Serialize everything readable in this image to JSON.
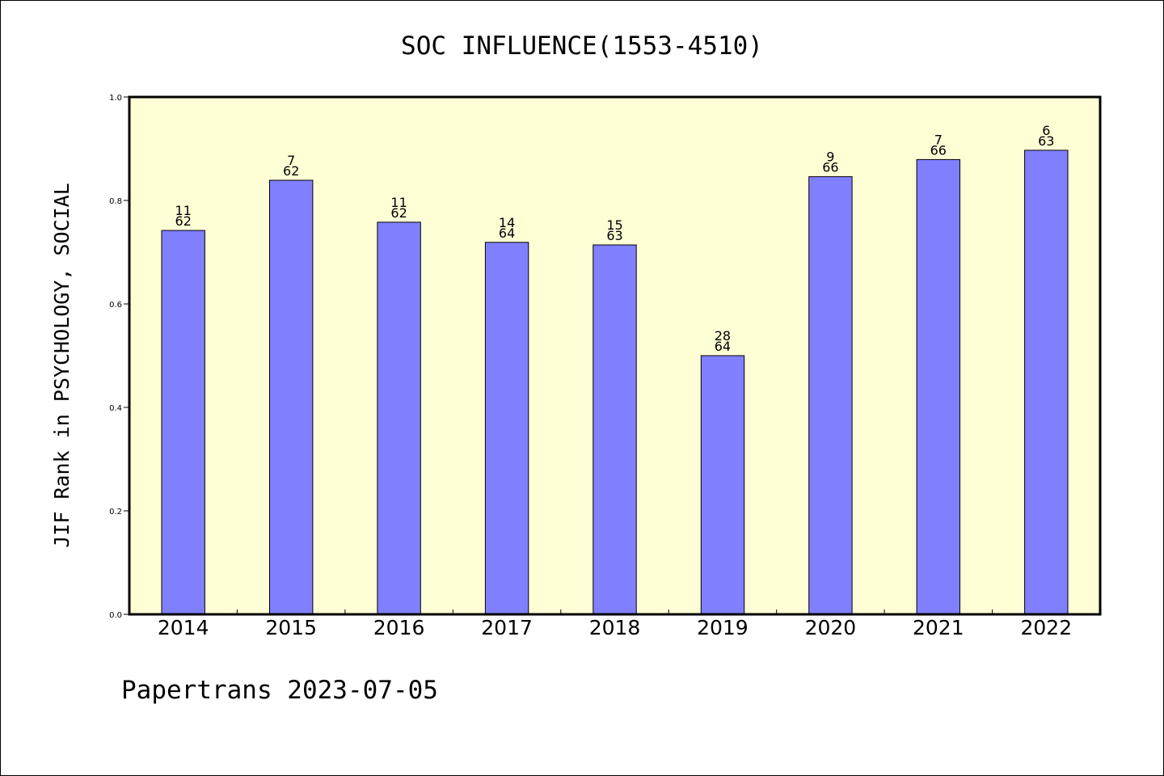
{
  "chart_data": {
    "type": "bar",
    "title": "SOC INFLUENCE(1553-4510)",
    "xlabel": "",
    "ylabel": "JIF Rank in PSYCHOLOGY, SOCIAL",
    "categories": [
      "2014",
      "2015",
      "2016",
      "2017",
      "2018",
      "2019",
      "2020",
      "2021",
      "2022"
    ],
    "values": [
      0.742,
      0.839,
      0.758,
      0.719,
      0.714,
      0.5,
      0.846,
      0.879,
      0.897
    ],
    "rank": [
      "11",
      "7",
      "11",
      "14",
      "15",
      "28",
      "9",
      "7",
      "6"
    ],
    "total": [
      "62",
      "62",
      "62",
      "64",
      "63",
      "64",
      "66",
      "66",
      "63"
    ],
    "ylim": [
      0,
      1.0
    ],
    "yticks": [
      "0.0",
      "0.2",
      "0.4",
      "0.6",
      "0.8",
      "1.0"
    ],
    "grid": false,
    "colors": {
      "bar": "#8080ff",
      "plot_background": "#ffffd6",
      "axis": "#000000"
    }
  },
  "footer": "Papertrans 2023-07-05"
}
